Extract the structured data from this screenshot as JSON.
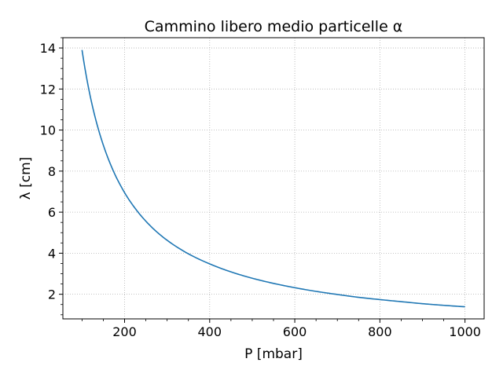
{
  "chart_data": {
    "type": "line",
    "title": "Cammino libero medio particelle α",
    "xlabel": "P  [mbar]",
    "ylabel": "λ  [cm]",
    "xlim": [
      55,
      1045
    ],
    "ylim": [
      0.8,
      14.5
    ],
    "xticks": [
      200,
      400,
      600,
      800,
      1000
    ],
    "yticks": [
      2,
      4,
      6,
      8,
      10,
      12,
      14
    ],
    "x_minor_step": 50,
    "y_minor_step": 0.5,
    "grid": true,
    "grid_style": "dotted",
    "line_color": "#1f77b4",
    "series": [
      {
        "x": [
          100,
          110,
          120,
          130,
          140,
          150,
          160,
          170,
          180,
          190,
          200,
          225,
          250,
          275,
          300,
          350,
          400,
          450,
          500,
          550,
          600,
          650,
          700,
          750,
          800,
          850,
          900,
          950,
          1000
        ],
        "values": [
          13.9,
          12.64,
          11.58,
          10.69,
          9.93,
          9.27,
          8.69,
          8.18,
          7.72,
          7.32,
          6.95,
          6.18,
          5.56,
          5.05,
          4.63,
          3.97,
          3.48,
          3.09,
          2.78,
          2.53,
          2.32,
          2.14,
          1.99,
          1.85,
          1.74,
          1.64,
          1.54,
          1.46,
          1.39
        ]
      }
    ]
  }
}
